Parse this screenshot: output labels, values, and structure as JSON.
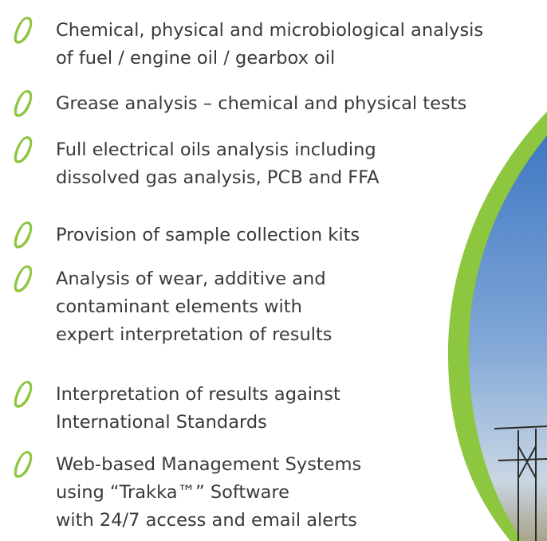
{
  "items": [
    {
      "lines": [
        "Chemical, physical and microbiological analysis",
        "of fuel / engine oil / gearbox oil"
      ]
    },
    {
      "lines": [
        "Grease analysis – chemical and physical tests"
      ]
    },
    {
      "lines": [
        "Full electrical oils analysis including",
        "dissolved gas analysis, PCB and FFA"
      ]
    },
    {
      "lines": [
        "Provision of sample collection kits"
      ]
    },
    {
      "lines": [
        "Analysis of wear, additive and",
        "contaminant elements with",
        "expert interpretation of results"
      ]
    },
    {
      "lines": [
        "Interpretation of results against",
        "International Standards"
      ]
    },
    {
      "lines": [
        "Web-based Management Systems",
        "using “Trakka™” Software",
        "with 24/7 access and email alerts"
      ]
    }
  ]
}
